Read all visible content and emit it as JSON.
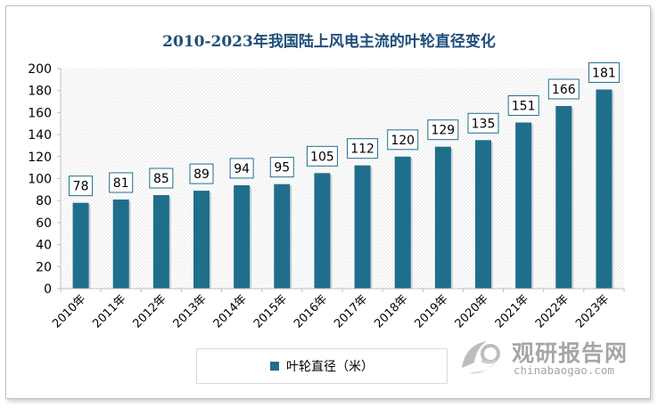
{
  "chart_data": {
    "type": "bar",
    "title": "2010-2023年我国陆上风电主流的叶轮直径变化",
    "categories": [
      "2010年",
      "2011年",
      "2012年",
      "2013年",
      "2014年",
      "2015年",
      "2016年",
      "2017年",
      "2018年",
      "2019年",
      "2020年",
      "2021年",
      "2022年",
      "2023年"
    ],
    "series": [
      {
        "name": "叶轮直径（米）",
        "values": [
          78,
          81,
          85,
          89,
          94,
          95,
          105,
          112,
          120,
          129,
          135,
          151,
          166,
          181
        ]
      }
    ],
    "ylim": [
      0,
      200
    ],
    "yticks": [
      0,
      20,
      40,
      60,
      80,
      100,
      120,
      140,
      160,
      180,
      200
    ],
    "xlabel": "",
    "ylabel": "",
    "grid": false,
    "legend_position": "bottom",
    "bar_color": "#1f6e8c",
    "label_border_color": "#1f6e8c"
  },
  "watermark": {
    "brand_cn": "观研报告网",
    "brand_en": "chinabaogao.com",
    "logo_icon": "chinabaogao-logo-icon"
  }
}
